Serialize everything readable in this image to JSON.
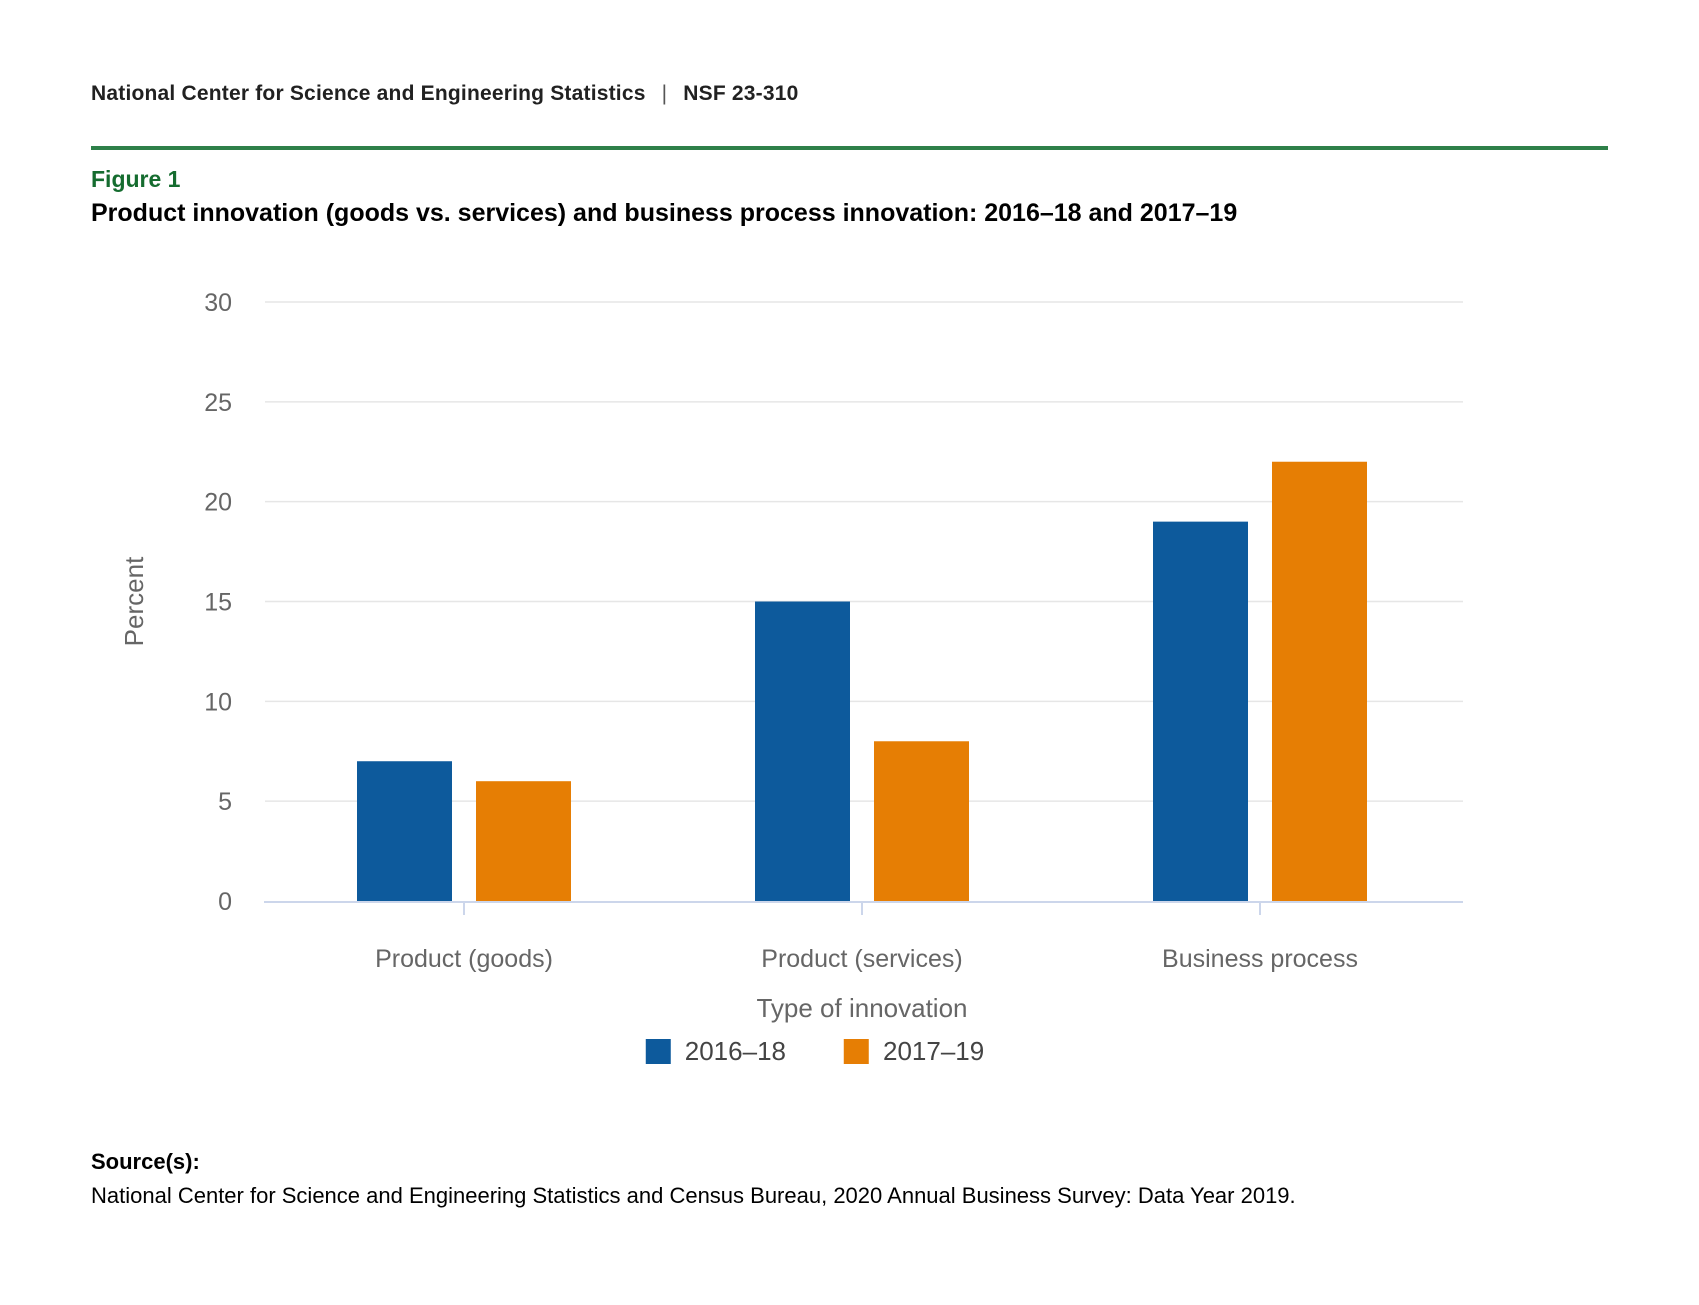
{
  "header": {
    "org": "National Center for Science and Engineering Statistics",
    "separator": "|",
    "report_id": "NSF 23-310"
  },
  "figure": {
    "label": "Figure 1",
    "title": "Product innovation (goods vs. services) and business process innovation: 2016–18 and 2017–19"
  },
  "chart_data": {
    "type": "bar",
    "title": "",
    "categories": [
      "Product (goods)",
      "Product (services)",
      "Business process"
    ],
    "series": [
      {
        "name": "2016–18",
        "color": "#0d5a9c",
        "values": [
          7,
          15,
          19
        ]
      },
      {
        "name": "2017–19",
        "color": "#e67e04",
        "values": [
          6,
          8,
          22
        ]
      }
    ],
    "xlabel": "Type of innovation",
    "ylabel": "Percent",
    "ylim": [
      0,
      30
    ],
    "ytick_step": 5,
    "grid": true,
    "legend_position": "bottom-center",
    "unit": "percent"
  },
  "source": {
    "label": "Source(s):",
    "text": "National Center for Science and Engineering Statistics and Census Bureau, 2020 Annual Business Survey: Data Year 2019."
  },
  "colors": {
    "rule_green": "#2e8049",
    "figure_label_green": "#156c2f",
    "series_blue": "#0d5a9c",
    "series_orange": "#e67e04",
    "grid_line": "#e6e6e6",
    "axis_line": "#ccd6eb",
    "axis_text": "#666666",
    "legend_text": "#444444"
  }
}
